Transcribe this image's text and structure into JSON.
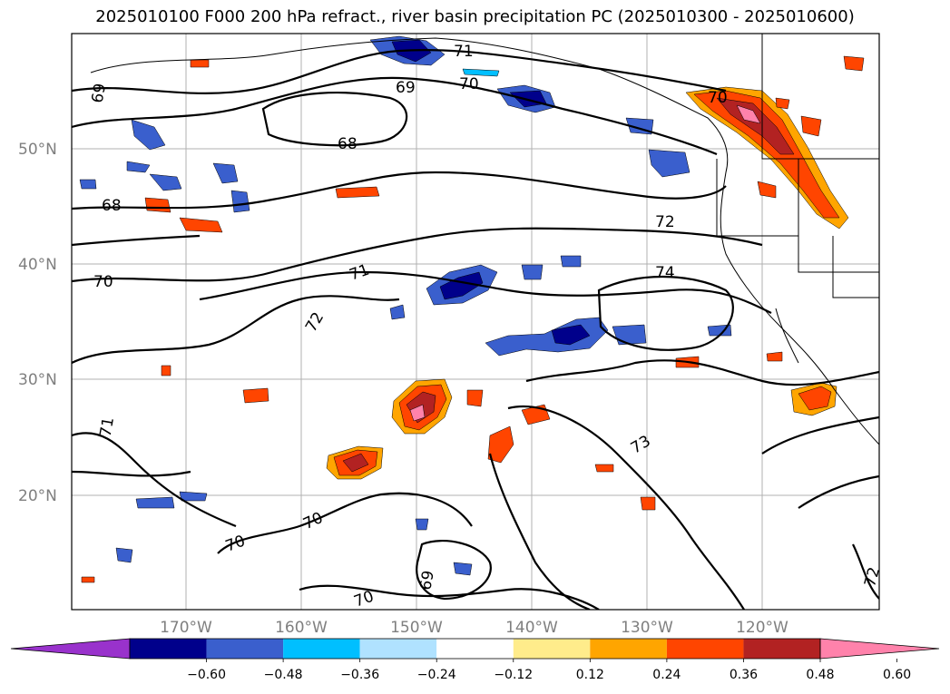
{
  "title": "2025010100 F000 200 hPa refract., river basin precipitation PC (2025010300 - 2025010600)",
  "lat_labels": [
    "50°N",
    "40°N",
    "30°N",
    "20°N"
  ],
  "lon_labels": [
    "170°W",
    "160°W",
    "150°W",
    "140°W",
    "130°W",
    "120°W"
  ],
  "contour_labels": [
    "71",
    "70",
    "69",
    "69",
    "68",
    "70",
    "68",
    "72",
    "71",
    "70",
    "74",
    "72",
    "73",
    "71",
    "70",
    "70",
    "69",
    "70",
    "72"
  ],
  "colorbar": {
    "ticks": [
      "−0.60",
      "−0.48",
      "−0.36",
      "−0.24",
      "−0.12",
      "0.12",
      "0.24",
      "0.36",
      "0.48",
      "0.60"
    ],
    "colors": [
      "#9932cc",
      "#00008b",
      "#3a5fcd",
      "#00bfff",
      "#b0e2ff",
      "#ffffff",
      "#ffec8b",
      "#ffa500",
      "#ff4500",
      "#b22222",
      "#ff82ab"
    ]
  }
}
